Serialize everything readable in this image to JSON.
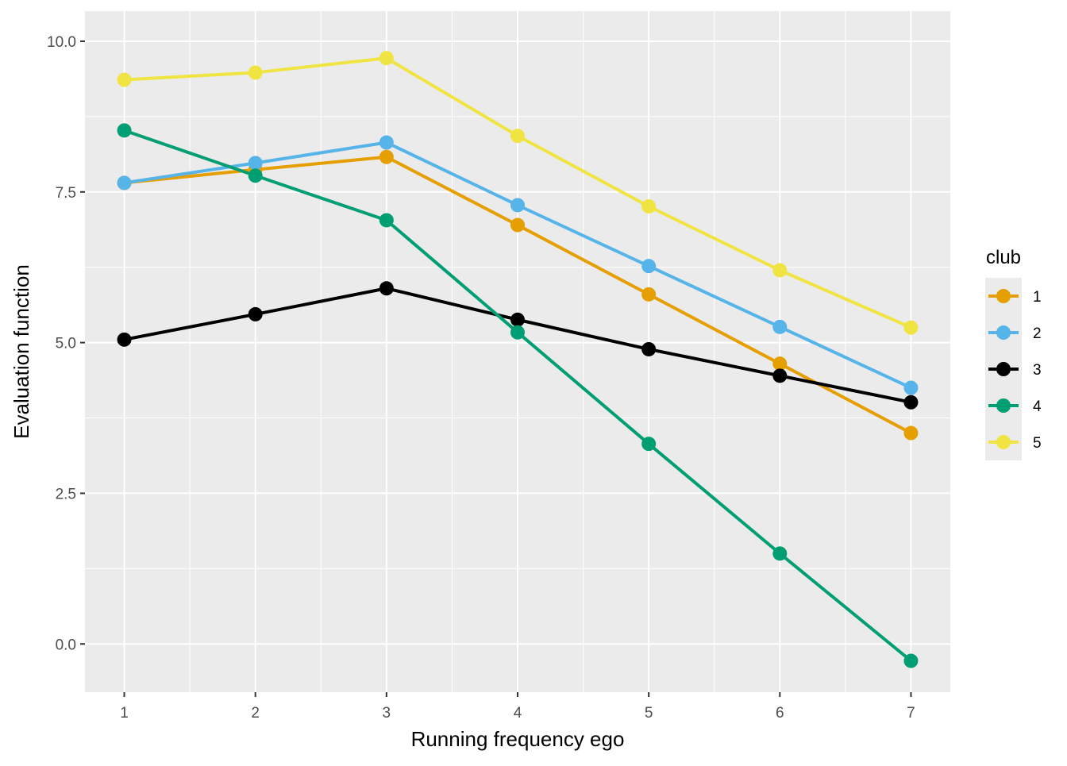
{
  "chart_data": {
    "type": "line",
    "xlabel": "Running frequency ego",
    "ylabel": "Evaluation function",
    "x": [
      1,
      2,
      3,
      4,
      5,
      6,
      7
    ],
    "xlim": [
      0.7,
      7.3
    ],
    "ylim": [
      -0.8,
      10.5
    ],
    "x_ticks": [
      1,
      2,
      3,
      4,
      5,
      6,
      7
    ],
    "x_tick_labels": [
      "1",
      "2",
      "3",
      "4",
      "5",
      "6",
      "7"
    ],
    "y_ticks": [
      0,
      2.5,
      5,
      7.5,
      10
    ],
    "y_tick_labels": [
      "0.0",
      "2.5",
      "5.0",
      "7.5",
      "10.0"
    ],
    "y_minor_ticks": [
      1.25,
      3.75,
      6.25,
      8.75
    ],
    "x_minor_ticks": [
      1.5,
      2.5,
      3.5,
      4.5,
      5.5,
      6.5
    ],
    "grid": true,
    "panel_background": "#EBEBEB",
    "grid_color": "#FFFFFF",
    "legend": {
      "title": "club",
      "placement": "right"
    },
    "series": [
      {
        "name": "1",
        "color": "#E69F00",
        "values": [
          7.65,
          7.87,
          8.08,
          6.95,
          5.8,
          4.65,
          3.5
        ]
      },
      {
        "name": "2",
        "color": "#56B4E9",
        "values": [
          7.65,
          7.98,
          8.32,
          7.28,
          6.27,
          5.26,
          4.25
        ]
      },
      {
        "name": "3",
        "color": "#000000",
        "values": [
          5.05,
          5.47,
          5.9,
          5.38,
          4.89,
          4.45,
          4.01
        ]
      },
      {
        "name": "4",
        "color": "#009E73",
        "values": [
          8.52,
          7.77,
          7.03,
          5.17,
          3.32,
          1.5,
          -0.28
        ]
      },
      {
        "name": "5",
        "color": "#F0E442",
        "values": [
          9.36,
          9.48,
          9.72,
          8.43,
          7.26,
          6.2,
          5.25
        ]
      }
    ]
  }
}
